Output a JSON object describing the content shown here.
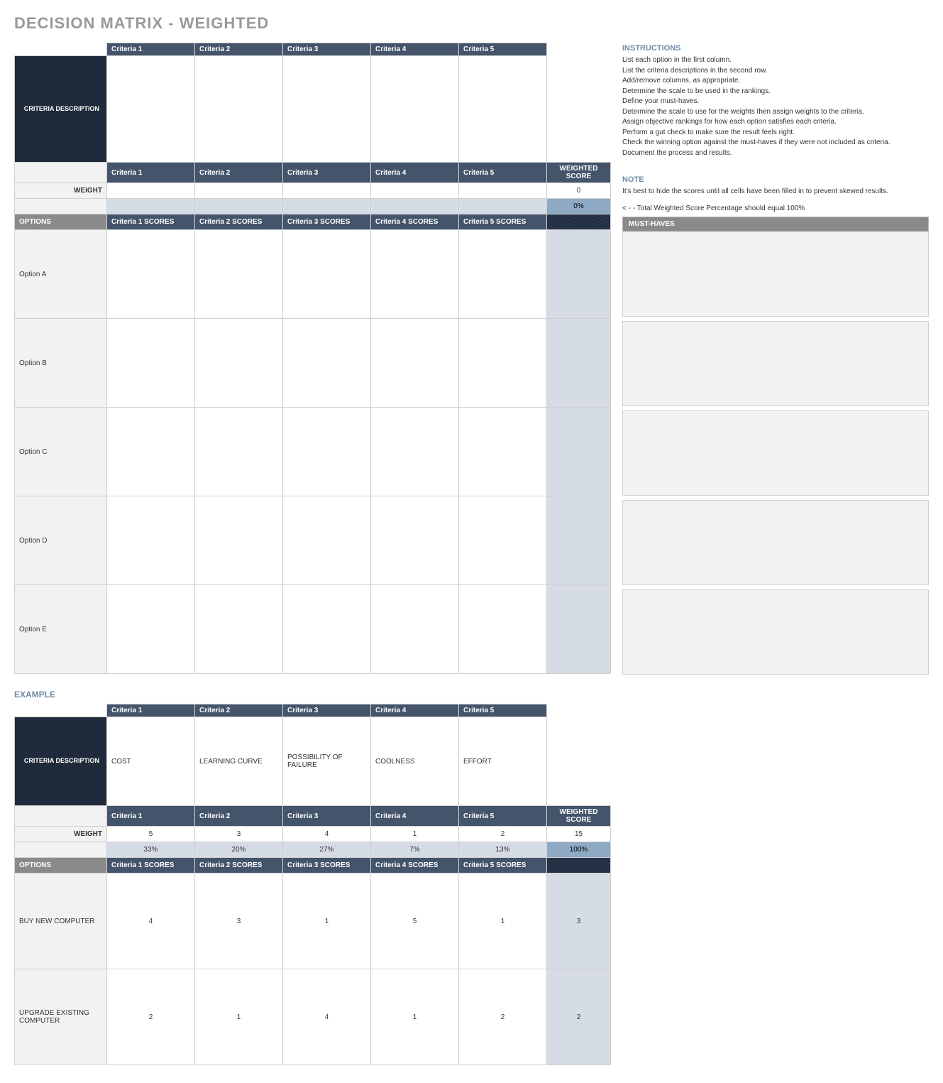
{
  "title": "DECISION MATRIX - WEIGHTED",
  "colors": {
    "header_dark": "#44546a",
    "header_navy": "#1f2a3a",
    "header_gray": "#8a8a8a",
    "row_light": "#f2f2f2",
    "row_lblue": "#d6dce5",
    "row_mblue": "#8ea9c4",
    "border": "#d0d0d0",
    "title_gray": "#999999",
    "accent_text": "#6f8aa5"
  },
  "main": {
    "criteria_headers": [
      "Criteria 1",
      "Criteria 2",
      "Criteria 3",
      "Criteria 4",
      "Criteria 5"
    ],
    "criteria_desc_label": "CRITERIA DESCRIPTION",
    "criteria_descriptions": [
      "",
      "",
      "",
      "",
      ""
    ],
    "weight_label": "WEIGHT",
    "weighted_score_label": "WEIGHTED SCORE",
    "weights": [
      "",
      "",
      "",
      "",
      ""
    ],
    "weight_total": "0",
    "weight_percents": [
      "",
      "",
      "",
      "",
      ""
    ],
    "weight_percent_total": "0%",
    "options_label": "OPTIONS",
    "score_headers": [
      "Criteria 1 SCORES",
      "Criteria 2 SCORES",
      "Criteria 3 SCORES",
      "Criteria 4 SCORES",
      "Criteria 5 SCORES"
    ],
    "options": [
      {
        "name": "Option A",
        "scores": [
          "",
          "",
          "",
          "",
          ""
        ],
        "weighted": ""
      },
      {
        "name": "Option B",
        "scores": [
          "",
          "",
          "",
          "",
          ""
        ],
        "weighted": ""
      },
      {
        "name": "Option C",
        "scores": [
          "",
          "",
          "",
          "",
          ""
        ],
        "weighted": ""
      },
      {
        "name": "Option D",
        "scores": [
          "",
          "",
          "",
          "",
          ""
        ],
        "weighted": ""
      },
      {
        "name": "Option E",
        "scores": [
          "",
          "",
          "",
          "",
          ""
        ],
        "weighted": ""
      }
    ]
  },
  "side": {
    "instructions_title": "INSTRUCTIONS",
    "instructions": [
      "List each option in the first column.",
      "List the criteria descriptions in the second row.",
      "Add/remove columns, as appropriate.",
      "Determine the scale to be used in the rankings.",
      "Define your must-haves.",
      "Determine the scale to use for the weights then assign weights to the criteria.",
      "Assign objective rankings for how each option satisfies each criteria.",
      "Perform a gut check to make sure the result feels right.",
      "Check the winning option against the must-haves if they were not included as criteria.",
      "Document the process and results."
    ],
    "note_title": "NOTE",
    "note_text": "It's best to hide the scores until all cells have been filled in to prevent skewed results.",
    "footnote": "< - - Total Weighted Score Percentage should equal 100%",
    "must_haves_label": "MUST-HAVES",
    "must_haves_count": 5
  },
  "example": {
    "title": "EXAMPLE",
    "criteria_headers": [
      "Criteria 1",
      "Criteria 2",
      "Criteria 3",
      "Criteria 4",
      "Criteria 5"
    ],
    "criteria_desc_label": "CRITERIA DESCRIPTION",
    "criteria_descriptions": [
      "COST",
      "LEARNING CURVE",
      "POSSIBILITY OF FAILURE",
      "COOLNESS",
      "EFFORT"
    ],
    "weight_label": "WEIGHT",
    "weighted_score_label": "WEIGHTED SCORE",
    "weights": [
      "5",
      "3",
      "4",
      "1",
      "2"
    ],
    "weight_total": "15",
    "weight_percents": [
      "33%",
      "20%",
      "27%",
      "7%",
      "13%"
    ],
    "weight_percent_total": "100%",
    "options_label": "OPTIONS",
    "score_headers": [
      "Criteria 1 SCORES",
      "Criteria 2 SCORES",
      "Criteria 3 SCORES",
      "Criteria 4 SCORES",
      "Criteria 5 SCORES"
    ],
    "options": [
      {
        "name": "BUY NEW COMPUTER",
        "scores": [
          "4",
          "3",
          "1",
          "5",
          "1"
        ],
        "weighted": "3"
      },
      {
        "name": "UPGRADE EXISTING COMPUTER",
        "scores": [
          "2",
          "1",
          "4",
          "1",
          "2"
        ],
        "weighted": "2"
      }
    ]
  }
}
